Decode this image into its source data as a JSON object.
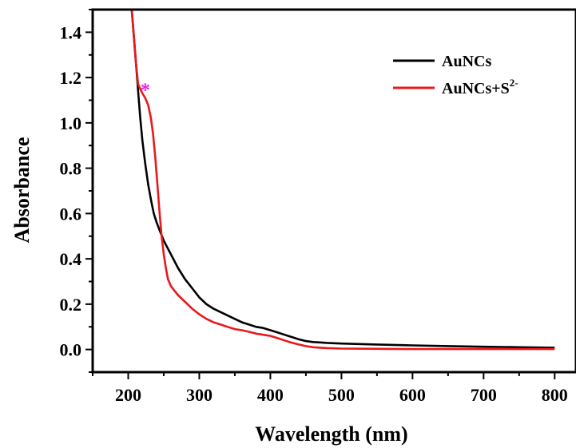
{
  "chart_data": {
    "type": "line",
    "xlabel": "Wavelength (nm)",
    "ylabel": "Absorbance",
    "xlim": [
      150,
      830
    ],
    "ylim": [
      -0.1,
      1.5
    ],
    "xticks": [
      "200",
      "300",
      "400",
      "500",
      "600",
      "700",
      "800"
    ],
    "yticks": [
      "0.0",
      "0.2",
      "0.4",
      "0.6",
      "0.8",
      "1.0",
      "1.2",
      "1.4"
    ],
    "grid": false,
    "legend_position": "top-right",
    "annotation": {
      "text": "*",
      "x": 224,
      "y": 1.16,
      "color": "#e020e0"
    },
    "series": [
      {
        "name": "AuNCs",
        "color": "#000000",
        "x": [
          205,
          208,
          211,
          214,
          217,
          220,
          224,
          228,
          232,
          236,
          240,
          245,
          250,
          255,
          260,
          270,
          280,
          290,
          300,
          310,
          320,
          330,
          340,
          350,
          360,
          370,
          380,
          390,
          400,
          410,
          420,
          430,
          440,
          450,
          460,
          470,
          480,
          500,
          550,
          600,
          650,
          700,
          750,
          800
        ],
        "y": [
          1.5,
          1.38,
          1.26,
          1.14,
          1.02,
          0.92,
          0.82,
          0.73,
          0.66,
          0.6,
          0.56,
          0.52,
          0.48,
          0.45,
          0.42,
          0.36,
          0.31,
          0.27,
          0.23,
          0.2,
          0.18,
          0.165,
          0.15,
          0.135,
          0.12,
          0.11,
          0.1,
          0.095,
          0.085,
          0.075,
          0.065,
          0.055,
          0.045,
          0.037,
          0.033,
          0.031,
          0.029,
          0.026,
          0.022,
          0.018,
          0.015,
          0.012,
          0.01,
          0.008
        ]
      },
      {
        "name": "AuNCs+S2-",
        "color": "#e8191c",
        "x": [
          205,
          208,
          211,
          214,
          217,
          220,
          224,
          228,
          232,
          235,
          238,
          241,
          244,
          247,
          250,
          253,
          256,
          260,
          265,
          270,
          280,
          290,
          300,
          310,
          320,
          330,
          340,
          350,
          360,
          370,
          380,
          390,
          400,
          410,
          420,
          430,
          440,
          450,
          460,
          470,
          480,
          500,
          550,
          600,
          650,
          700,
          750,
          800
        ],
        "y": [
          1.5,
          1.38,
          1.26,
          1.17,
          1.15,
          1.13,
          1.11,
          1.08,
          1.02,
          0.95,
          0.85,
          0.73,
          0.61,
          0.5,
          0.42,
          0.36,
          0.31,
          0.28,
          0.26,
          0.24,
          0.21,
          0.18,
          0.155,
          0.135,
          0.12,
          0.11,
          0.1,
          0.09,
          0.085,
          0.078,
          0.07,
          0.065,
          0.06,
          0.05,
          0.04,
          0.03,
          0.022,
          0.015,
          0.01,
          0.008,
          0.006,
          0.004,
          0.003,
          0.002,
          0.002,
          0.002,
          0.002,
          0.002
        ]
      }
    ]
  },
  "legend": {
    "items": [
      {
        "label": "AuNCs",
        "sup": "",
        "color": "#000000"
      },
      {
        "label": "AuNCs+S",
        "sup": "2-",
        "color": "#e8191c"
      }
    ]
  }
}
